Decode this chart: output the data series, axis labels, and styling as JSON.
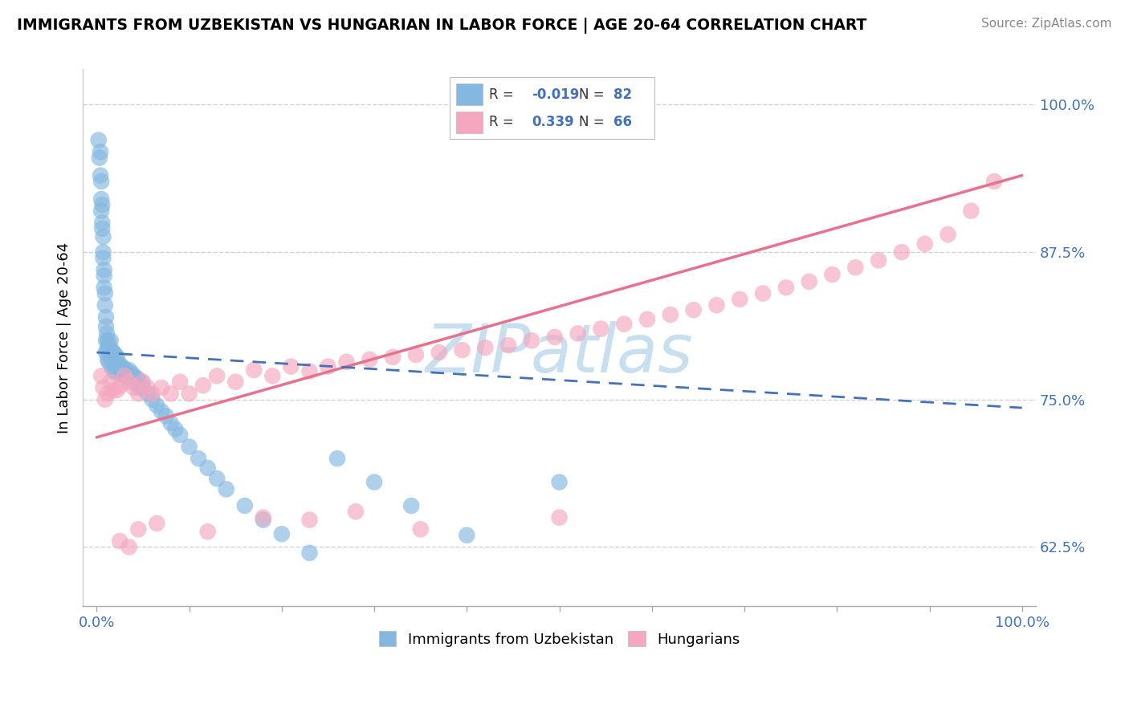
{
  "title": "IMMIGRANTS FROM UZBEKISTAN VS HUNGARIAN IN LABOR FORCE | AGE 20-64 CORRELATION CHART",
  "source": "Source: ZipAtlas.com",
  "ylabel": "In Labor Force | Age 20-64",
  "R_blue": -0.019,
  "N_blue": 82,
  "R_pink": 0.339,
  "N_pink": 66,
  "blue_color": "#85b8e0",
  "pink_color": "#f4a7be",
  "blue_line_color": "#4472b8",
  "pink_line_color": "#e8718d",
  "watermark_color": "#c8dff0",
  "background_color": "#ffffff",
  "grid_color": "#cccccc",
  "legend_label_blue": "Immigrants from Uzbekistan",
  "legend_label_pink": "Hungarians",
  "ytick_color": "#4472b8",
  "xtick_color": "#4472b8",
  "ylim": [
    0.575,
    1.03
  ],
  "xlim": [
    -0.015,
    1.015
  ],
  "blue_x": [
    0.002,
    0.003,
    0.004,
    0.004,
    0.005,
    0.005,
    0.005,
    0.006,
    0.006,
    0.006,
    0.007,
    0.007,
    0.007,
    0.008,
    0.008,
    0.008,
    0.009,
    0.009,
    0.01,
    0.01,
    0.01,
    0.01,
    0.011,
    0.011,
    0.012,
    0.012,
    0.013,
    0.013,
    0.014,
    0.015,
    0.015,
    0.016,
    0.016,
    0.017,
    0.018,
    0.018,
    0.019,
    0.02,
    0.02,
    0.021,
    0.022,
    0.023,
    0.024,
    0.025,
    0.026,
    0.027,
    0.028,
    0.03,
    0.031,
    0.032,
    0.033,
    0.035,
    0.036,
    0.038,
    0.04,
    0.042,
    0.044,
    0.046,
    0.048,
    0.05,
    0.055,
    0.06,
    0.065,
    0.07,
    0.075,
    0.08,
    0.085,
    0.09,
    0.1,
    0.11,
    0.12,
    0.13,
    0.14,
    0.16,
    0.18,
    0.2,
    0.23,
    0.26,
    0.3,
    0.34,
    0.4,
    0.5
  ],
  "blue_y": [
    0.97,
    0.955,
    0.94,
    0.96,
    0.92,
    0.935,
    0.91,
    0.9,
    0.915,
    0.895,
    0.888,
    0.875,
    0.87,
    0.86,
    0.855,
    0.845,
    0.84,
    0.83,
    0.82,
    0.812,
    0.8,
    0.79,
    0.806,
    0.792,
    0.8,
    0.784,
    0.796,
    0.782,
    0.79,
    0.8,
    0.785,
    0.792,
    0.778,
    0.785,
    0.79,
    0.775,
    0.782,
    0.788,
    0.773,
    0.781,
    0.786,
    0.78,
    0.774,
    0.78,
    0.772,
    0.778,
    0.771,
    0.776,
    0.77,
    0.774,
    0.769,
    0.775,
    0.768,
    0.772,
    0.77,
    0.764,
    0.768,
    0.76,
    0.765,
    0.76,
    0.755,
    0.75,
    0.745,
    0.74,
    0.736,
    0.73,
    0.725,
    0.72,
    0.71,
    0.7,
    0.692,
    0.683,
    0.674,
    0.66,
    0.648,
    0.636,
    0.62,
    0.7,
    0.68,
    0.66,
    0.635,
    0.68
  ],
  "pink_x": [
    0.005,
    0.007,
    0.009,
    0.012,
    0.015,
    0.018,
    0.022,
    0.026,
    0.03,
    0.035,
    0.04,
    0.045,
    0.05,
    0.055,
    0.06,
    0.07,
    0.08,
    0.09,
    0.1,
    0.115,
    0.13,
    0.15,
    0.17,
    0.19,
    0.21,
    0.23,
    0.25,
    0.27,
    0.295,
    0.32,
    0.345,
    0.37,
    0.395,
    0.42,
    0.445,
    0.47,
    0.495,
    0.52,
    0.545,
    0.57,
    0.595,
    0.62,
    0.645,
    0.67,
    0.695,
    0.72,
    0.745,
    0.77,
    0.795,
    0.82,
    0.845,
    0.87,
    0.895,
    0.92,
    0.945,
    0.97,
    0.025,
    0.035,
    0.045,
    0.065,
    0.12,
    0.18,
    0.23,
    0.28,
    0.35,
    0.5
  ],
  "pink_y": [
    0.77,
    0.76,
    0.75,
    0.755,
    0.765,
    0.758,
    0.758,
    0.762,
    0.77,
    0.765,
    0.76,
    0.755,
    0.765,
    0.76,
    0.755,
    0.76,
    0.755,
    0.765,
    0.755,
    0.762,
    0.77,
    0.765,
    0.775,
    0.77,
    0.778,
    0.774,
    0.778,
    0.782,
    0.784,
    0.786,
    0.788,
    0.79,
    0.792,
    0.794,
    0.796,
    0.8,
    0.803,
    0.806,
    0.81,
    0.814,
    0.818,
    0.822,
    0.826,
    0.83,
    0.835,
    0.84,
    0.845,
    0.85,
    0.856,
    0.862,
    0.868,
    0.875,
    0.882,
    0.89,
    0.91,
    0.935,
    0.63,
    0.625,
    0.64,
    0.645,
    0.638,
    0.65,
    0.648,
    0.655,
    0.64,
    0.65
  ],
  "pink_line_start_x": 0.0,
  "pink_line_start_y": 0.718,
  "pink_line_end_x": 1.0,
  "pink_line_end_y": 0.94,
  "blue_line_start_x": 0.0,
  "blue_line_start_y": 0.79,
  "blue_line_end_x": 1.0,
  "blue_line_end_y": 0.743
}
